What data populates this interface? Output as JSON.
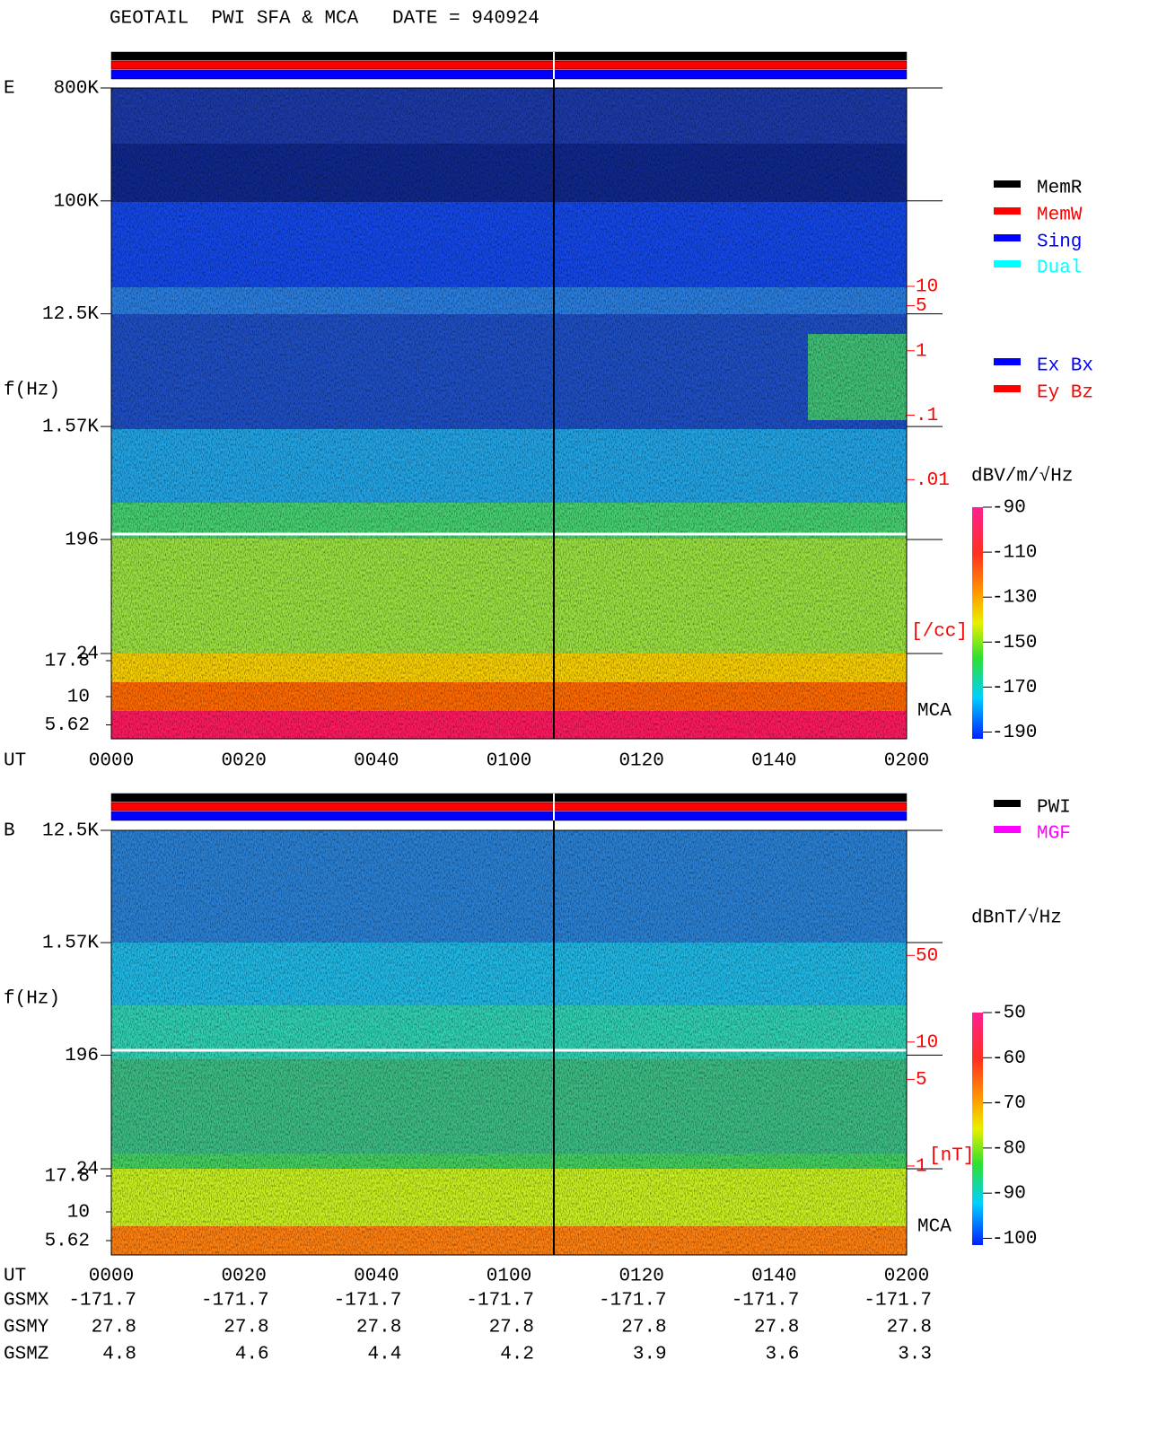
{
  "title": "GEOTAIL  PWI SFA & MCA   DATE = 940924",
  "chart_data": [
    {
      "type": "spectrogram",
      "panel_label": "E",
      "ylabel": "f(Hz)",
      "log_y": true,
      "ylim": [
        24,
        800000
      ],
      "yticks": [
        {
          "value": 800000,
          "label": "800K"
        },
        {
          "value": 100000,
          "label": "100K"
        },
        {
          "value": 12500,
          "label": "12.5K"
        },
        {
          "value": 1570,
          "label": "1.57K"
        },
        196,
        24
      ],
      "mca_label": "MCA",
      "mca_ticks": [
        17.8,
        10,
        5.62
      ],
      "x_label": "UT",
      "categories": [
        "0000",
        "0020",
        "0040",
        "0100",
        "0120",
        "0140",
        "0200"
      ],
      "y2lim": [
        2e-05,
        12000
      ],
      "y2ticks": [
        10,
        5,
        1,
        {
          "value": 0.1,
          "label": ".1"
        },
        {
          "value": 0.01,
          "label": ".01"
        }
      ],
      "y2_unit": "[/cc]",
      "colorbar": {
        "label": "dBV/m/√Hz",
        "lim": [
          -193,
          -90
        ],
        "ticks": [
          -90,
          -110,
          -130,
          -150,
          -170,
          -190
        ]
      },
      "status_legend": [
        {
          "name": "MemR",
          "color": "#000000"
        },
        {
          "name": "MemW",
          "color": "#ff0000"
        },
        {
          "name": "Sing",
          "color": "#0000ff"
        },
        {
          "name": "Dual",
          "color": "#00ffff"
        }
      ],
      "antenna_legend": [
        {
          "name": "Ex Bx",
          "color": "#0000ff"
        },
        {
          "name": "Ey Bz",
          "color": "#ff0000"
        }
      ]
    },
    {
      "type": "spectrogram",
      "panel_label": "B",
      "ylabel": "f(Hz)",
      "log_y": true,
      "ylim": [
        24,
        12500
      ],
      "yticks": [
        {
          "value": 12500,
          "label": "12.5K"
        },
        {
          "value": 1570,
          "label": "1.57K"
        },
        196,
        24
      ],
      "mca_label": "MCA",
      "mca_ticks": [
        17.8,
        10,
        5.62
      ],
      "x_label": "UT",
      "categories": [
        "0000",
        "0020",
        "0040",
        "0100",
        "0120",
        "0140",
        "0200"
      ],
      "y2lim": [
        0.95,
        510
      ],
      "y2ticks": [
        50,
        10,
        5,
        1
      ],
      "y2_unit": "[nT]",
      "colorbar": {
        "label": "dBnT/√Hz",
        "lim": [
          -101.5,
          -50
        ],
        "ticks": [
          -50,
          -60,
          -70,
          -80,
          -90,
          -100
        ]
      },
      "status_legend": [
        {
          "name": "PWI",
          "color": "#000000"
        },
        {
          "name": "MGF",
          "color": "#ff00ff"
        }
      ]
    }
  ],
  "orbit": {
    "labels": [
      "GSMX",
      "GSMY",
      "GSMZ"
    ],
    "rows": [
      [
        -171.7,
        -171.7,
        -171.7,
        -171.7,
        -171.7,
        -171.7,
        -171.7
      ],
      [
        27.8,
        27.8,
        27.8,
        27.8,
        27.8,
        27.8,
        27.8
      ],
      [
        4.8,
        4.6,
        4.4,
        4.2,
        3.9,
        3.6,
        3.3
      ]
    ]
  }
}
